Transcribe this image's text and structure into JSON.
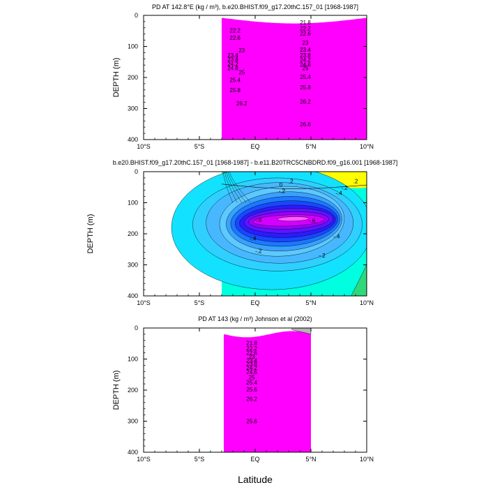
{
  "chart_data": [
    {
      "type": "contour",
      "title": "PD AT 142.8°E (kg / m³), b.e20.BHIST.f09_g17.20thC.157_01 [1968-1987]",
      "ylabel": "DEPTH (m)",
      "xlabel": "",
      "xlim": [
        -10,
        10
      ],
      "ylim": [
        0,
        400
      ],
      "x_ticks": [
        -10,
        -5,
        0,
        5,
        10
      ],
      "x_tick_labels": [
        "10°S",
        "5°S",
        "EQ",
        "5°N",
        "10°N"
      ],
      "y_ticks": [
        0,
        100,
        200,
        300,
        400
      ],
      "y_tick_labels": [
        "0",
        "100",
        "200",
        "300",
        "400"
      ],
      "data_x_range": [
        -3,
        10
      ],
      "palette": "rainbow-high",
      "levels": [
        {
          "value": 21.8,
          "depth": 25,
          "label_x": 4.5,
          "label_depth": 22
        },
        {
          "value": 22.2,
          "depth": 40,
          "label_x": -1.8,
          "label_depth": 48
        },
        {
          "value": 22.2,
          "depth": 40,
          "label_x": 4.5,
          "label_depth": 42
        },
        {
          "value": 22.6,
          "depth": 60,
          "label_x": -1.8,
          "label_depth": 72
        },
        {
          "value": 22.6,
          "depth": 60,
          "label_x": 4.5,
          "label_depth": 58
        },
        {
          "value": 23,
          "depth": 100,
          "label_x": -1.3,
          "label_depth": 112
        },
        {
          "value": 23.4,
          "depth": 118,
          "label_x": -2.0,
          "label_depth": 128
        },
        {
          "value": 23.8,
          "depth": 135,
          "label_x": -2.0,
          "label_depth": 142
        },
        {
          "value": 24.2,
          "depth": 150,
          "label_x": -2.0,
          "label_depth": 156
        },
        {
          "value": 24.6,
          "depth": 165,
          "label_x": -2.0,
          "label_depth": 170
        },
        {
          "value": 25,
          "depth": 182,
          "label_x": -1.3,
          "label_depth": 183
        },
        {
          "value": 25.4,
          "depth": 215,
          "label_x": -1.8,
          "label_depth": 208
        },
        {
          "value": 25.8,
          "depth": 245,
          "label_x": -1.8,
          "label_depth": 240
        },
        {
          "value": 26.2,
          "depth": 285,
          "label_x": -1.3,
          "label_depth": 285
        },
        {
          "value": 26.6,
          "depth": 345,
          "label_x": 4.5,
          "label_depth": 350
        }
      ],
      "right_labels": [
        {
          "text": "21.8",
          "x": 4.5,
          "depth": 22
        },
        {
          "text": "22.2",
          "x": 4.5,
          "depth": 42
        },
        {
          "text": "22.6",
          "x": 4.5,
          "depth": 58
        },
        {
          "text": "23",
          "x": 4.5,
          "depth": 88
        },
        {
          "text": "23.4",
          "x": 4.5,
          "depth": 110
        },
        {
          "text": "23.8",
          "x": 4.5,
          "depth": 128
        },
        {
          "text": "24.2",
          "x": 4.5,
          "depth": 143
        },
        {
          "text": "24.6",
          "x": 4.5,
          "depth": 158
        },
        {
          "text": "25",
          "x": 4.5,
          "depth": 170
        },
        {
          "text": "25.4",
          "x": 4.5,
          "depth": 198
        },
        {
          "text": "25.8",
          "x": 4.5,
          "depth": 232
        },
        {
          "text": "26.2",
          "x": 4.5,
          "depth": 278
        },
        {
          "text": "26.6",
          "x": 4.5,
          "depth": 350
        }
      ],
      "left_labels": [
        {
          "text": "22.2",
          "x": -1.8,
          "depth": 48
        },
        {
          "text": "22.6",
          "x": -1.8,
          "depth": 72
        },
        {
          "text": "23",
          "x": -1.2,
          "depth": 112
        },
        {
          "text": "23.4",
          "x": -2.0,
          "depth": 128
        },
        {
          "text": "23.8",
          "x": -2.0,
          "depth": 142
        },
        {
          "text": "24.2",
          "x": -2.0,
          "depth": 156
        },
        {
          "text": "24.6",
          "x": -2.0,
          "depth": 170
        },
        {
          "text": "25",
          "x": -1.2,
          "depth": 183
        },
        {
          "text": "25.4",
          "x": -1.8,
          "depth": 208
        },
        {
          "text": "25.8",
          "x": -1.8,
          "depth": 240
        },
        {
          "text": "26.2",
          "x": -1.2,
          "depth": 283
        }
      ]
    },
    {
      "type": "contour",
      "title": "b.e20.BHIST.f09_g17.20thC.157_01 [1968-1987] - b.e11.B20TRC5CNBDRD.f09_g16.001 [1968-1987]",
      "ylabel": "DEPTH (m)",
      "xlabel": "",
      "xlim": [
        -10,
        10
      ],
      "ylim": [
        0,
        400
      ],
      "x_ticks": [
        -10,
        -5,
        0,
        5,
        10
      ],
      "x_tick_labels": [
        "10°S",
        "5°S",
        "EQ",
        "5°N",
        "10°N"
      ],
      "y_ticks": [
        0,
        100,
        200,
        300,
        400
      ],
      "y_tick_labels": [
        "0",
        "100",
        "200",
        "300",
        "400"
      ],
      "data_x_range": [
        -3,
        10
      ],
      "palette": "difference",
      "contour_labels": [
        {
          "text": ".2",
          "x": 3.2,
          "depth": 30
        },
        {
          "text": ".2",
          "x": 9.0,
          "depth": 30
        },
        {
          "text": "0",
          "x": 2.3,
          "depth": 42
        },
        {
          "text": "-.2",
          "x": 2.4,
          "depth": 62
        },
        {
          "text": "-.2",
          "x": 8.0,
          "depth": 52
        },
        {
          "text": "-.4",
          "x": 7.5,
          "depth": 68
        },
        {
          "text": "-.6",
          "x": 0.3,
          "depth": 155
        },
        {
          "text": "-.6",
          "x": 5.1,
          "depth": 157
        },
        {
          "text": "-.4",
          "x": -0.2,
          "depth": 215
        },
        {
          "text": "-.4",
          "x": 7.3,
          "depth": 208
        },
        {
          "text": "-.2",
          "x": 0.3,
          "depth": 255
        },
        {
          "text": "-.2",
          "x": 6.0,
          "depth": 270
        }
      ]
    },
    {
      "type": "contour",
      "title": "PD AT 143 (kg / m³) Johnson et al (2002)",
      "ylabel": "DEPTH (m)",
      "xlabel": "Latitude",
      "xlim": [
        -10,
        10
      ],
      "ylim": [
        0,
        400
      ],
      "x_ticks": [
        -10,
        -5,
        0,
        5,
        10
      ],
      "x_tick_labels": [
        "10°S",
        "5°S",
        "EQ",
        "5°N",
        "10°N"
      ],
      "y_ticks": [
        0,
        100,
        200,
        300,
        400
      ],
      "y_tick_labels": [
        "0",
        "100",
        "200",
        "300",
        "400"
      ],
      "data_x_range": [
        -2.8,
        5
      ],
      "palette": "rainbow-high",
      "contour_labels": [
        {
          "text": "21.8",
          "x": -0.3,
          "depth": 48
        },
        {
          "text": "22.2",
          "x": -0.3,
          "depth": 65
        },
        {
          "text": "22.6",
          "x": -0.3,
          "depth": 80
        },
        {
          "text": "23",
          "x": -0.3,
          "depth": 92
        },
        {
          "text": "23.4",
          "x": -0.3,
          "depth": 104
        },
        {
          "text": "23.8",
          "x": -0.3,
          "depth": 116
        },
        {
          "text": "24.2",
          "x": -0.3,
          "depth": 128
        },
        {
          "text": "24.6",
          "x": -0.3,
          "depth": 142
        },
        {
          "text": "25",
          "x": -0.3,
          "depth": 158
        },
        {
          "text": "25.4",
          "x": -0.3,
          "depth": 175
        },
        {
          "text": "25.6",
          "x": -0.3,
          "depth": 198
        },
        {
          "text": "26.2",
          "x": -0.3,
          "depth": 228
        },
        {
          "text": "25.6",
          "x": -0.3,
          "depth": 300
        }
      ]
    }
  ]
}
